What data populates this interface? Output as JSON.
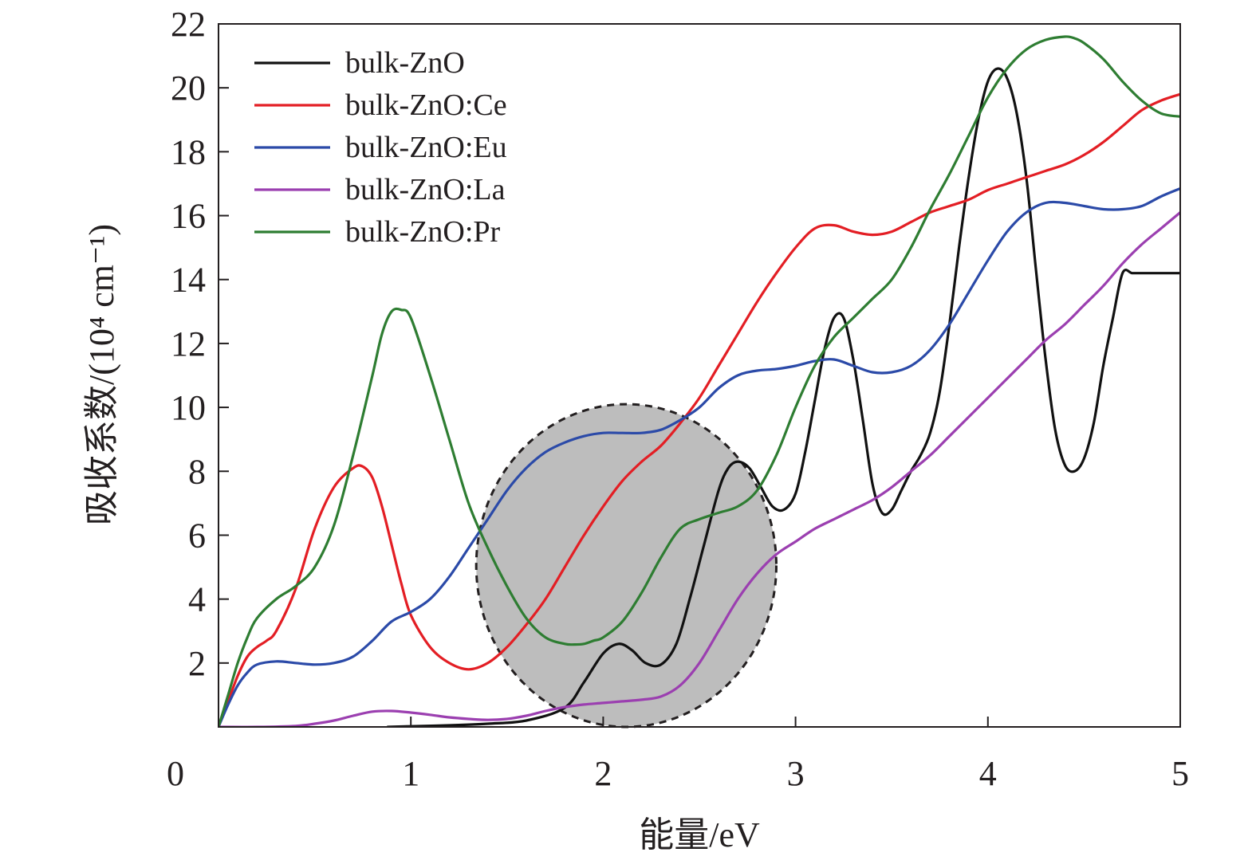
{
  "chart_data": {
    "type": "line",
    "title": "",
    "xlabel": "能量/eV",
    "ylabel": "吸收系数/(10⁴ cm⁻¹)",
    "xlim": [
      0,
      5
    ],
    "ylim": [
      0,
      22
    ],
    "xticks": [
      0,
      1,
      2,
      3,
      4,
      5
    ],
    "yticks": [
      2,
      4,
      6,
      8,
      10,
      12,
      14,
      16,
      18,
      20,
      22
    ],
    "legend_position": "top-left",
    "grid": false,
    "highlight_region": {
      "shape": "circle",
      "center_x": 2.12,
      "center_y": 5.05,
      "radius_x": 0.78,
      "radius_y": 5.05,
      "fill": "#bdbdbd",
      "style": "dashed"
    },
    "series": [
      {
        "name": "bulk-ZnO",
        "color": "#111111",
        "x": [
          0.88,
          1.0,
          1.2,
          1.4,
          1.6,
          1.8,
          1.9,
          2.0,
          2.08,
          2.15,
          2.22,
          2.3,
          2.38,
          2.45,
          2.52,
          2.6,
          2.65,
          2.7,
          2.76,
          2.82,
          2.88,
          2.94,
          3.0,
          3.05,
          3.1,
          3.15,
          3.2,
          3.25,
          3.3,
          3.35,
          3.4,
          3.45,
          3.5,
          3.55,
          3.6,
          3.65,
          3.7,
          3.75,
          3.8,
          3.85,
          3.9,
          3.95,
          4.0,
          4.05,
          4.1,
          4.15,
          4.2,
          4.25,
          4.3,
          4.35,
          4.4,
          4.45,
          4.5,
          4.55,
          4.6,
          4.65,
          4.7,
          4.75,
          4.8,
          4.85,
          4.9,
          4.95,
          5.0
        ],
        "y": [
          0.0,
          0.02,
          0.05,
          0.1,
          0.2,
          0.6,
          1.4,
          2.3,
          2.6,
          2.4,
          2.0,
          1.95,
          2.6,
          4.0,
          5.6,
          7.4,
          8.1,
          8.3,
          8.1,
          7.5,
          6.9,
          6.8,
          7.3,
          8.6,
          10.2,
          11.8,
          12.8,
          12.8,
          11.5,
          9.6,
          7.6,
          6.7,
          6.8,
          7.4,
          8.0,
          8.5,
          9.2,
          10.5,
          12.6,
          15.0,
          17.2,
          19.0,
          20.2,
          20.6,
          20.3,
          19.2,
          17.2,
          14.3,
          11.5,
          9.3,
          8.2,
          8.0,
          8.4,
          9.5,
          11.3,
          12.8,
          14.2,
          14.2,
          14.2,
          14.2,
          14.2,
          14.2,
          14.2
        ]
      },
      {
        "name": "bulk-ZnO:Ce",
        "color": "#e31e24",
        "x": [
          0.0,
          0.05,
          0.1,
          0.15,
          0.2,
          0.25,
          0.3,
          0.4,
          0.5,
          0.6,
          0.7,
          0.75,
          0.8,
          0.85,
          0.9,
          0.95,
          1.0,
          1.1,
          1.2,
          1.3,
          1.4,
          1.5,
          1.6,
          1.7,
          1.8,
          1.9,
          2.0,
          2.1,
          2.2,
          2.3,
          2.4,
          2.5,
          2.6,
          2.7,
          2.8,
          2.9,
          3.0,
          3.1,
          3.2,
          3.3,
          3.4,
          3.5,
          3.6,
          3.7,
          3.8,
          3.9,
          4.0,
          4.1,
          4.2,
          4.3,
          4.4,
          4.5,
          4.6,
          4.7,
          4.8,
          4.9,
          5.0
        ],
        "y": [
          0.0,
          0.8,
          1.6,
          2.2,
          2.5,
          2.7,
          3.0,
          4.3,
          6.2,
          7.5,
          8.1,
          8.15,
          7.8,
          6.9,
          5.7,
          4.5,
          3.5,
          2.5,
          2.0,
          1.8,
          2.0,
          2.5,
          3.2,
          4.0,
          5.0,
          6.0,
          6.9,
          7.7,
          8.3,
          8.8,
          9.5,
          10.3,
          11.3,
          12.3,
          13.3,
          14.2,
          15.0,
          15.6,
          15.7,
          15.5,
          15.4,
          15.5,
          15.8,
          16.1,
          16.3,
          16.5,
          16.8,
          17.0,
          17.2,
          17.4,
          17.6,
          17.9,
          18.3,
          18.8,
          19.3,
          19.6,
          19.8
        ]
      },
      {
        "name": "bulk-ZnO:Eu",
        "color": "#2b4aa8",
        "x": [
          0.0,
          0.05,
          0.1,
          0.15,
          0.2,
          0.3,
          0.4,
          0.5,
          0.6,
          0.7,
          0.8,
          0.9,
          1.0,
          1.1,
          1.2,
          1.3,
          1.4,
          1.5,
          1.6,
          1.7,
          1.8,
          1.9,
          2.0,
          2.1,
          2.2,
          2.3,
          2.4,
          2.5,
          2.6,
          2.7,
          2.8,
          2.9,
          3.0,
          3.1,
          3.2,
          3.3,
          3.4,
          3.5,
          3.6,
          3.7,
          3.8,
          3.9,
          4.0,
          4.1,
          4.2,
          4.3,
          4.4,
          4.5,
          4.6,
          4.7,
          4.8,
          4.9,
          5.0
        ],
        "y": [
          0.0,
          0.7,
          1.3,
          1.7,
          1.95,
          2.05,
          2.0,
          1.95,
          2.0,
          2.2,
          2.7,
          3.3,
          3.6,
          4.0,
          4.7,
          5.6,
          6.5,
          7.4,
          8.1,
          8.6,
          8.9,
          9.1,
          9.2,
          9.2,
          9.2,
          9.3,
          9.6,
          10.0,
          10.6,
          11.0,
          11.15,
          11.2,
          11.3,
          11.45,
          11.5,
          11.3,
          11.1,
          11.1,
          11.3,
          11.8,
          12.6,
          13.6,
          14.6,
          15.5,
          16.1,
          16.4,
          16.4,
          16.3,
          16.2,
          16.2,
          16.3,
          16.6,
          16.85
        ]
      },
      {
        "name": "bulk-ZnO:La",
        "color": "#9b3fb0",
        "x": [
          0.0,
          0.2,
          0.4,
          0.5,
          0.6,
          0.7,
          0.8,
          0.9,
          1.0,
          1.1,
          1.2,
          1.3,
          1.4,
          1.5,
          1.6,
          1.7,
          1.8,
          1.9,
          2.0,
          2.1,
          2.2,
          2.3,
          2.4,
          2.5,
          2.6,
          2.7,
          2.8,
          2.9,
          3.0,
          3.1,
          3.2,
          3.3,
          3.4,
          3.5,
          3.6,
          3.7,
          3.8,
          3.9,
          4.0,
          4.1,
          4.2,
          4.3,
          4.4,
          4.5,
          4.6,
          4.7,
          4.8,
          4.9,
          5.0
        ],
        "y": [
          0.0,
          0.0,
          0.03,
          0.1,
          0.2,
          0.35,
          0.48,
          0.5,
          0.45,
          0.38,
          0.3,
          0.25,
          0.22,
          0.25,
          0.35,
          0.5,
          0.62,
          0.7,
          0.75,
          0.8,
          0.85,
          0.95,
          1.3,
          2.0,
          3.0,
          4.0,
          4.8,
          5.4,
          5.8,
          6.2,
          6.5,
          6.8,
          7.1,
          7.5,
          8.0,
          8.5,
          9.1,
          9.7,
          10.3,
          10.9,
          11.5,
          12.1,
          12.6,
          13.2,
          13.8,
          14.5,
          15.1,
          15.6,
          16.1
        ]
      },
      {
        "name": "bulk-ZnO:Pr",
        "color": "#2e7d32",
        "x": [
          0.0,
          0.05,
          0.1,
          0.15,
          0.2,
          0.3,
          0.4,
          0.5,
          0.6,
          0.7,
          0.8,
          0.85,
          0.9,
          0.95,
          1.0,
          1.1,
          1.2,
          1.3,
          1.4,
          1.5,
          1.6,
          1.7,
          1.8,
          1.85,
          1.9,
          1.95,
          2.0,
          2.1,
          2.2,
          2.3,
          2.4,
          2.5,
          2.6,
          2.7,
          2.8,
          2.9,
          3.0,
          3.1,
          3.2,
          3.3,
          3.4,
          3.5,
          3.6,
          3.7,
          3.8,
          3.9,
          4.0,
          4.1,
          4.2,
          4.3,
          4.4,
          4.45,
          4.5,
          4.6,
          4.7,
          4.8,
          4.9,
          5.0
        ],
        "y": [
          0.0,
          1.0,
          2.0,
          2.8,
          3.4,
          4.0,
          4.4,
          5.0,
          6.3,
          8.5,
          11.0,
          12.3,
          13.0,
          13.05,
          12.8,
          11.0,
          9.0,
          7.0,
          5.6,
          4.4,
          3.4,
          2.8,
          2.6,
          2.58,
          2.6,
          2.7,
          2.8,
          3.3,
          4.2,
          5.3,
          6.2,
          6.5,
          6.7,
          6.9,
          7.4,
          8.5,
          10.0,
          11.3,
          12.2,
          12.8,
          13.4,
          14.0,
          15.0,
          16.2,
          17.3,
          18.5,
          19.7,
          20.6,
          21.2,
          21.5,
          21.6,
          21.55,
          21.4,
          20.9,
          20.2,
          19.6,
          19.2,
          19.1
        ]
      }
    ]
  }
}
